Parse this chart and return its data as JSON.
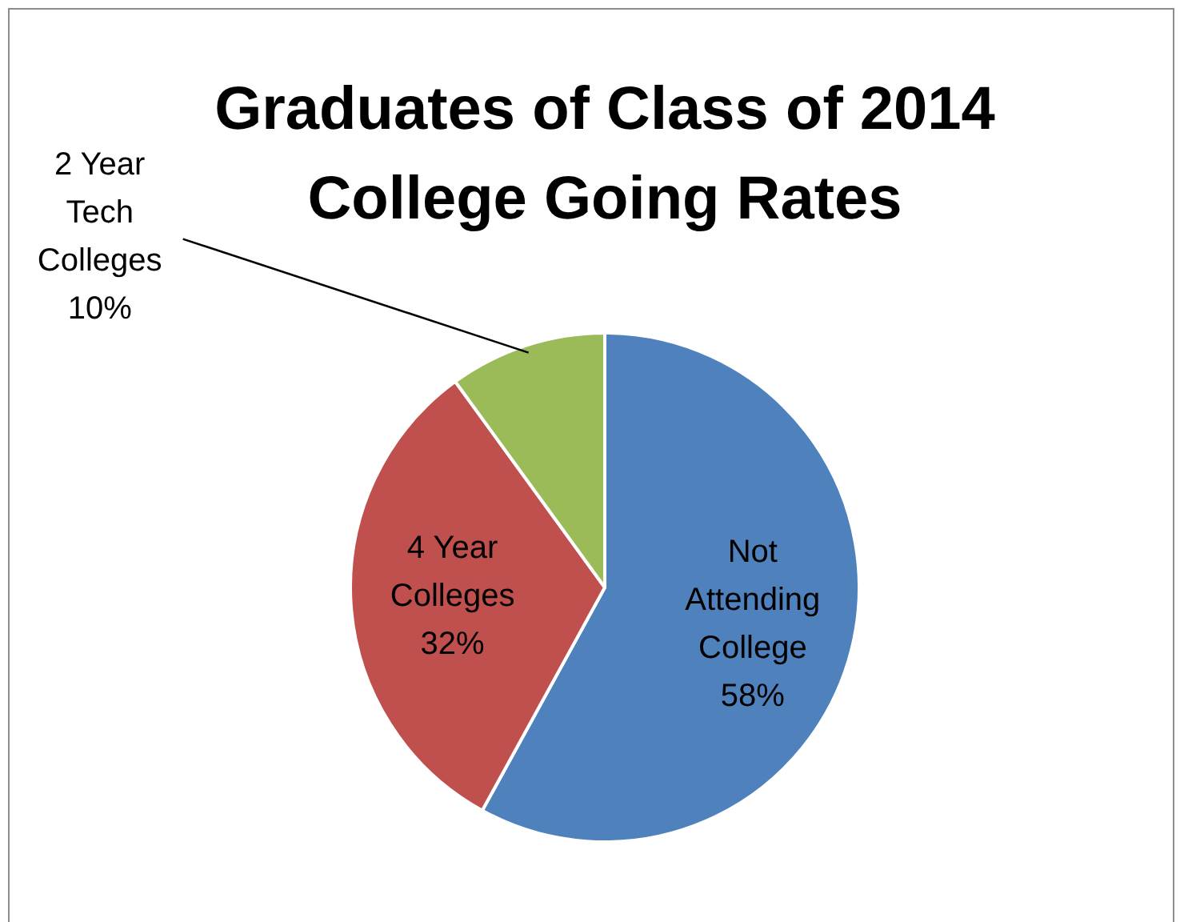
{
  "chart_data": {
    "type": "pie",
    "title": "Graduates of Class of 2014 College Going Rates",
    "categories": [
      "Not Attending College",
      "4 Year Colleges",
      "2 Year Tech Colleges"
    ],
    "values": [
      58,
      32,
      10
    ],
    "colors": [
      "#4f81bd",
      "#c0504d",
      "#9bbb59"
    ],
    "value_labels": [
      "58%",
      "32%",
      "10%"
    ],
    "legend": false
  }
}
